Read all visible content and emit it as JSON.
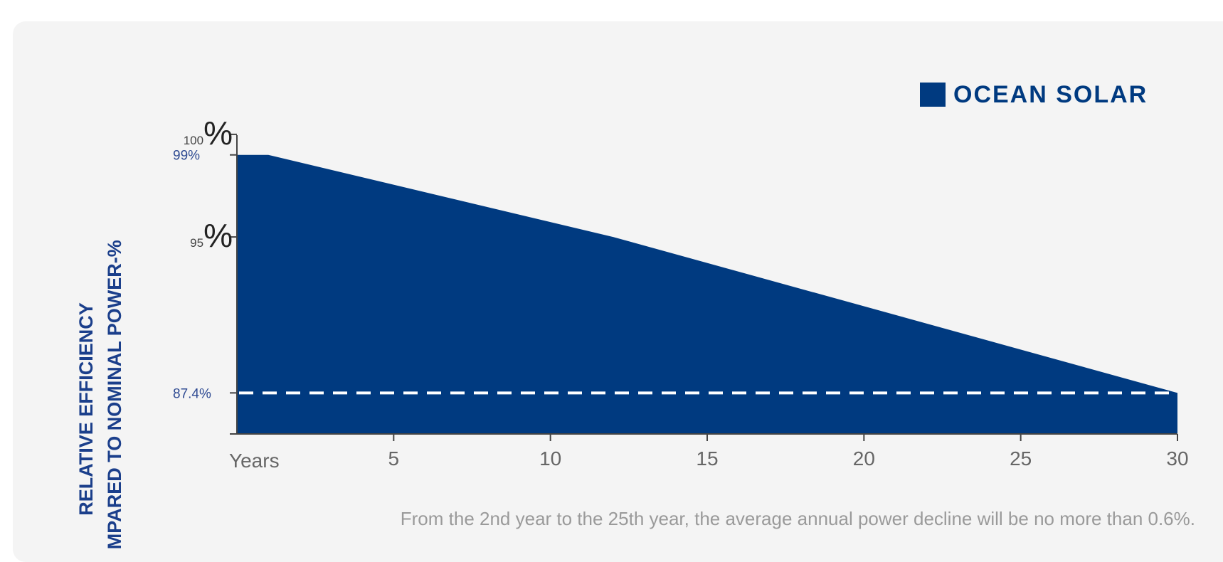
{
  "chart_data": {
    "type": "area",
    "ylabel_lines": [
      "RELATIVE EFFICIENCY",
      "COMPARED TO NOMINAL POWER-%"
    ],
    "xlabel": "Years",
    "x": [
      0,
      1,
      12,
      30
    ],
    "series": [
      {
        "name": "OCEAN SOLAR",
        "values": [
          99,
          99,
          95,
          87.4
        ],
        "color": "#003a80"
      }
    ],
    "xlim": [
      0,
      30
    ],
    "ylim": [
      85.4,
      100.1
    ],
    "x_ticks": [
      {
        "value": 5,
        "label": "5"
      },
      {
        "value": 10,
        "label": "10"
      },
      {
        "value": 15,
        "label": "15"
      },
      {
        "value": 20,
        "label": "20"
      },
      {
        "value": 25,
        "label": "25"
      },
      {
        "value": 30,
        "label": "30"
      }
    ],
    "y_ticks": [
      {
        "value": 100,
        "number": "100",
        "unit": "%"
      },
      {
        "value": 95,
        "number": "95",
        "unit": "%"
      }
    ],
    "annotations": [
      {
        "value": 99,
        "label": "99%"
      },
      {
        "value": 87.4,
        "label": "87.4%"
      }
    ],
    "reference_line": {
      "value": 87.4,
      "style": "dashed",
      "color": "#ffffff"
    },
    "legend_position": "top-right",
    "grid": false
  },
  "footnote": "From the 2nd year to the 25th year, the average annual power decline will be no more than 0.6%."
}
